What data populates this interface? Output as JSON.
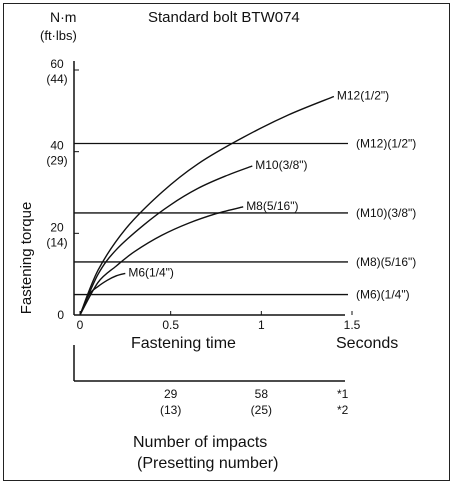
{
  "chart_data": {
    "type": "line",
    "title": "Standard bolt BTW074",
    "y_unit": "N·m",
    "y_unit_alt": "(ft·lbs)",
    "ylabel": "Fastening torque",
    "xlabel": "Fastening time",
    "x_unit": "Seconds",
    "xlim": [
      0,
      1.5
    ],
    "ylim": [
      0,
      60
    ],
    "x_ticks": [
      {
        "value": 0,
        "label": "0"
      },
      {
        "value": 0.5,
        "label": "0.5"
      },
      {
        "value": 1,
        "label": "1"
      },
      {
        "value": 1.5,
        "label": "1.5"
      }
    ],
    "y_ticks": [
      {
        "value": 0,
        "label": "0",
        "alt": ""
      },
      {
        "value": 20,
        "label": "20",
        "alt": "(14)"
      },
      {
        "value": 40,
        "label": "40",
        "alt": "(29)"
      },
      {
        "value": 60,
        "label": "60",
        "alt": "(44)"
      }
    ],
    "series": [
      {
        "name": "M6(1/4\")",
        "x": [
          0,
          0.05,
          0.1,
          0.15,
          0.2,
          0.25
        ],
        "y": [
          0,
          5,
          7,
          8.5,
          9.6,
          10.2
        ]
      },
      {
        "name": "M8(5/16\")",
        "x": [
          0,
          0.1,
          0.2,
          0.3,
          0.45,
          0.6,
          0.75,
          0.9
        ],
        "y": [
          0,
          8,
          12,
          15.5,
          19.5,
          22.5,
          24.8,
          26.5
        ]
      },
      {
        "name": "M10(3/8\")",
        "x": [
          0,
          0.1,
          0.2,
          0.35,
          0.5,
          0.65,
          0.8,
          0.95
        ],
        "y": [
          0,
          10,
          16,
          22,
          27,
          31,
          34,
          36.5
        ]
      },
      {
        "name": "M12(1/2\")",
        "x": [
          0,
          0.1,
          0.25,
          0.45,
          0.65,
          0.9,
          1.15,
          1.4
        ],
        "y": [
          0,
          11,
          21,
          30,
          37,
          43.5,
          49,
          53.5
        ]
      }
    ],
    "reference_lines": [
      {
        "label": "(M12)(1/2\")",
        "y": 42
      },
      {
        "label": "(M10)(3/8\")",
        "y": 25
      },
      {
        "label": "(M8)(5/16\")",
        "y": 13
      },
      {
        "label": "(M6)(1/4\")",
        "y": 5
      }
    ],
    "impacts": {
      "title": "Number of impacts",
      "subtitle": "(Presetting number)",
      "values": [
        {
          "x": 0.5,
          "label": "29",
          "alt": "(13)"
        },
        {
          "x": 1,
          "label": "58",
          "alt": "(25)"
        }
      ],
      "notes": [
        "*1",
        "*2"
      ]
    }
  }
}
